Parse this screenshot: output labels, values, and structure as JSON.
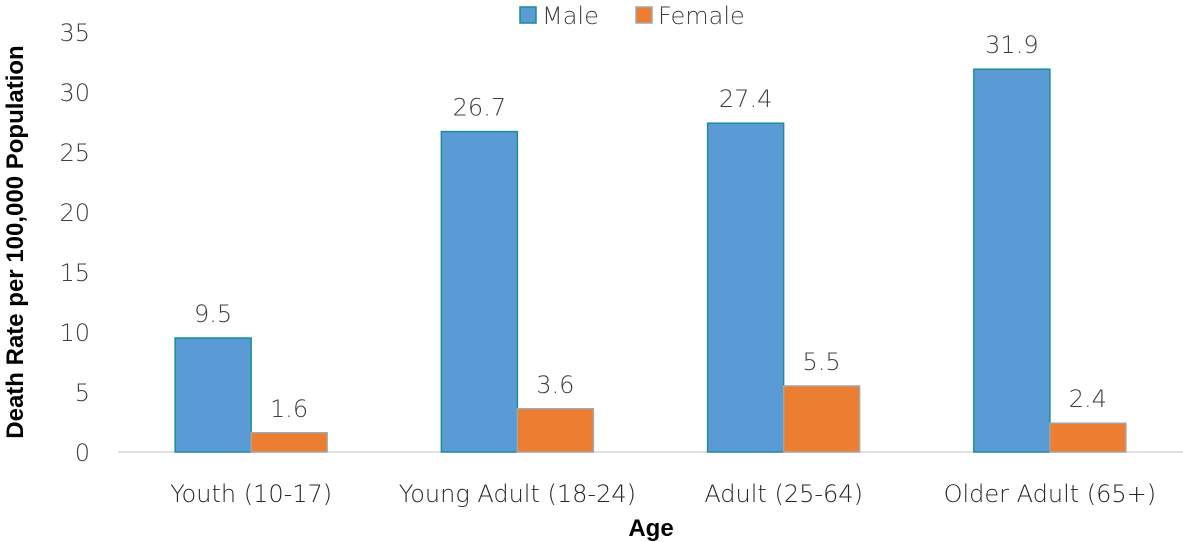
{
  "chart_data": {
    "type": "bar",
    "title": "",
    "xlabel": "Age",
    "ylabel": "Death Rate per 100,000 Population",
    "categories": [
      "Youth (10-17)",
      "Young Adult (18-24)",
      "Adult (25-64)",
      "Older Adult (65+)"
    ],
    "series": [
      {
        "name": "Male",
        "values": [
          9.5,
          26.7,
          27.4,
          31.9
        ],
        "color": "#5b9bd5",
        "edge": "#1b8c9c"
      },
      {
        "name": "Female",
        "values": [
          1.6,
          3.6,
          5.5,
          2.4
        ],
        "color": "#ed7d31",
        "edge": "#a5a5a5"
      }
    ],
    "ylim": [
      0,
      35
    ],
    "yticks": [
      0,
      5,
      10,
      15,
      20,
      25,
      30,
      35
    ],
    "grid": false,
    "legend_position": "top-center",
    "data_labels": true
  }
}
